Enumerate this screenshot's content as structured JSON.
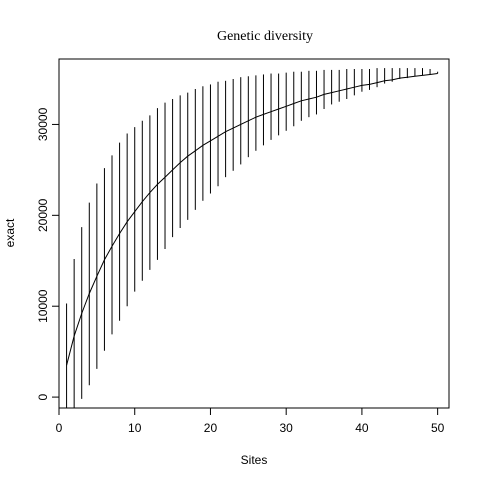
{
  "chart_data": {
    "type": "line",
    "title": "Genetic diversity",
    "xlabel": "Sites",
    "ylabel": "exact",
    "xlim": [
      0,
      51.5
    ],
    "ylim": [
      -1200,
      37200
    ],
    "x_ticks": [
      0,
      10,
      20,
      30,
      40,
      50
    ],
    "y_ticks": [
      0,
      10000,
      20000,
      30000
    ],
    "x_tick_labels": [
      "0",
      "10",
      "20",
      "30",
      "40",
      "50"
    ],
    "y_tick_labels": [
      "0",
      "10000",
      "20000",
      "30000"
    ],
    "grid": false,
    "legend": "none",
    "line_color": "#000000",
    "series": [
      {
        "x": [
          1,
          2,
          3,
          4,
          5,
          6,
          7,
          8,
          9,
          10,
          11,
          12,
          13,
          14,
          15,
          16,
          17,
          18,
          19,
          20,
          21,
          22,
          23,
          24,
          25,
          26,
          27,
          28,
          29,
          30,
          31,
          32,
          33,
          34,
          35,
          36,
          37,
          38,
          39,
          40,
          41,
          42,
          43,
          44,
          45,
          46,
          47,
          48,
          49,
          50
        ],
        "values": [
          3500,
          6700,
          9200,
          11400,
          13300,
          15100,
          16600,
          18000,
          19300,
          20400,
          21500,
          22500,
          23400,
          24200,
          25000,
          25800,
          26500,
          27100,
          27700,
          28200,
          28700,
          29200,
          29600,
          30000,
          30400,
          30800,
          31100,
          31400,
          31700,
          32000,
          32300,
          32600,
          32800,
          33000,
          33300,
          33500,
          33700,
          33900,
          34100,
          34300,
          34400,
          34600,
          34800,
          34900,
          35100,
          35200,
          35300,
          35400,
          35500,
          35600
        ],
        "lower": [
          -3300,
          -1700,
          -200,
          1300,
          3100,
          5100,
          6900,
          8400,
          10000,
          11600,
          12800,
          14000,
          15100,
          16300,
          17600,
          18600,
          19500,
          20600,
          21600,
          22400,
          23200,
          24200,
          24900,
          25600,
          26400,
          27100,
          27700,
          28300,
          28800,
          29300,
          29800,
          30400,
          30800,
          31100,
          31700,
          32200,
          32500,
          32800,
          33200,
          33600,
          33800,
          34100,
          34500,
          34700,
          35000,
          35100,
          35300,
          35400,
          35500,
          35600
        ],
        "upper": [
          10300,
          15200,
          18700,
          21400,
          23500,
          25200,
          26600,
          28000,
          29000,
          29700,
          30400,
          31000,
          31800,
          32400,
          32800,
          33200,
          33500,
          33900,
          34200,
          34400,
          34700,
          34800,
          35000,
          35200,
          35300,
          35400,
          35500,
          35600,
          35600,
          35700,
          35800,
          35800,
          35900,
          35900,
          36000,
          36000,
          36000,
          36100,
          36100,
          36100,
          36100,
          36200,
          36200,
          36200,
          36200,
          36200,
          36200,
          36200,
          36100,
          35800
        ]
      }
    ]
  }
}
